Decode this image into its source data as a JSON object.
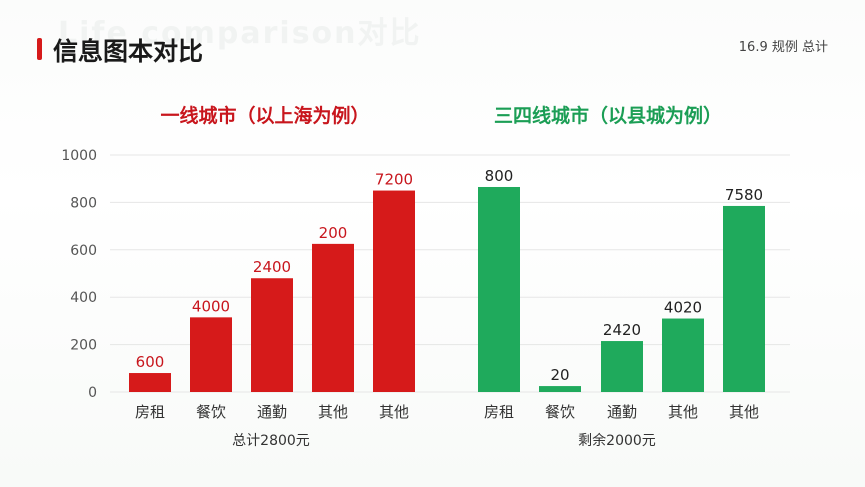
{
  "header": {
    "title": "信息图本对比",
    "watermark": "Life comparison对比",
    "top_right": "16.9 规例  总计"
  },
  "colors": {
    "red": "#d61a1a",
    "green": "#1faa5c",
    "accent": "#d61a1a"
  },
  "chart_data": [
    {
      "type": "bar",
      "title": "一线城市（以上海为例）",
      "categories": [
        "房租",
        "餐饮",
        "通勤",
        "其他",
        "其他"
      ],
      "values": [
        80,
        315,
        480,
        625,
        850
      ],
      "data_labels": [
        "600",
        "4000",
        "2400",
        "200",
        "7200"
      ],
      "xlabel": "总计2800元",
      "ylim": [
        0,
        1000
      ],
      "yticks": [
        "0",
        "200",
        "400",
        "600",
        "800",
        "1000"
      ],
      "color": "#d61a1a",
      "grid": true
    },
    {
      "type": "bar",
      "title": "三四线城市（以县城为例）",
      "categories": [
        "房租",
        "餐饮",
        "通勤",
        "其他",
        "其他"
      ],
      "values": [
        865,
        25,
        215,
        310,
        785
      ],
      "data_labels": [
        "800",
        "20",
        "2420",
        "4020",
        "7580"
      ],
      "xlabel": "剩余2000元",
      "ylim": [
        0,
        1000
      ],
      "color": "#1faa5c",
      "grid": true
    }
  ]
}
